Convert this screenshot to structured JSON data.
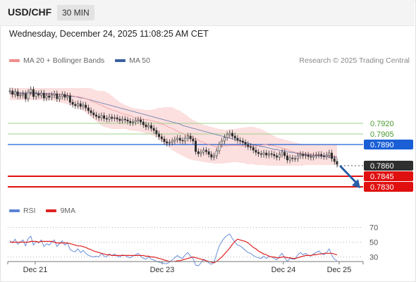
{
  "header": {
    "symbol": "USD/CHF",
    "timeframe": "30 MIN",
    "datetime": "Wednesday, December 24, 2025 11:08:25 AM CET"
  },
  "legend": {
    "items": [
      {
        "label": "MA 20 + Bollinger Bands",
        "color": "#f08c8c",
        "icon": "ma20-bollinger-swatch"
      },
      {
        "label": "MA 50",
        "color": "#3a5fa0",
        "icon": "ma50-swatch"
      }
    ],
    "copyright": "Research © 2025 Trading Central"
  },
  "rsi_legend": {
    "items": [
      {
        "label": "RSI",
        "color": "#5b84d6",
        "icon": "rsi-swatch"
      },
      {
        "label": "9MA",
        "color": "#e02020",
        "icon": "rsi-9ma-swatch"
      }
    ]
  },
  "chart_data": [
    {
      "type": "candlestick",
      "instrument": "USD/CHF",
      "interval": "30 MIN",
      "x_ticks": [
        "Dec 21",
        "Dec 23",
        "Dec 24",
        "Dec 25"
      ],
      "price_levels": [
        {
          "label": "0.7920",
          "value": 0.792,
          "style": "green-line"
        },
        {
          "label": "0.7905",
          "value": 0.7905,
          "style": "green-line"
        },
        {
          "label": "0.7890",
          "value": 0.789,
          "style": "blue-line-box"
        },
        {
          "label": "0.7860",
          "value": 0.786,
          "style": "current-price-box"
        },
        {
          "label": "0.7845",
          "value": 0.7845,
          "style": "red-line-box"
        },
        {
          "label": "0.7830",
          "value": 0.783,
          "style": "red-line-box"
        }
      ],
      "price_range": [
        0.7815,
        0.7995
      ],
      "close": [
        0.7966,
        0.7961,
        0.7965,
        0.7959,
        0.796,
        0.7962,
        0.7955,
        0.7964,
        0.7968,
        0.7958,
        0.7962,
        0.796,
        0.7963,
        0.7956,
        0.7959,
        0.7957,
        0.796,
        0.7962,
        0.7955,
        0.7958,
        0.7961,
        0.7957,
        0.7959,
        0.795,
        0.7947,
        0.7945,
        0.7948,
        0.7944,
        0.7946,
        0.7942,
        0.7938,
        0.7935,
        0.7932,
        0.793,
        0.7928,
        0.7931,
        0.7927,
        0.7926,
        0.7929,
        0.7927,
        0.7928,
        0.7926,
        0.7924,
        0.7926,
        0.7925,
        0.7923,
        0.7921,
        0.7922,
        0.7924,
        0.7925,
        0.7922,
        0.7918,
        0.7915,
        0.7917,
        0.7913,
        0.791,
        0.7905,
        0.7901,
        0.7898,
        0.7894,
        0.7892,
        0.7893,
        0.7895,
        0.7897,
        0.7899,
        0.7896,
        0.7895,
        0.7899,
        0.7902,
        0.7898,
        0.7895,
        0.788,
        0.7877,
        0.7879,
        0.7882,
        0.788,
        0.7876,
        0.7872,
        0.7874,
        0.7881,
        0.789,
        0.7895,
        0.79,
        0.7904,
        0.7906,
        0.7902,
        0.7899,
        0.7896,
        0.7895,
        0.7893,
        0.789,
        0.7887,
        0.7886,
        0.7882,
        0.7879,
        0.7877,
        0.7876,
        0.7878,
        0.7875,
        0.7877,
        0.7876,
        0.7874,
        0.7872,
        0.7876,
        0.7879,
        0.7874,
        0.7868,
        0.7871,
        0.787,
        0.787,
        0.7874,
        0.7876,
        0.7874,
        0.7875,
        0.7873,
        0.7872,
        0.7874,
        0.7875,
        0.7876,
        0.7874,
        0.7873,
        0.7875,
        0.7878,
        0.787,
        0.7866,
        0.7862
      ],
      "ma20_series": [
        0.7962,
        0.7962,
        0.7962,
        0.7962,
        0.7962,
        0.7962,
        0.7962,
        0.7962,
        0.7962,
        0.7962,
        0.7962,
        0.7962,
        0.7962,
        0.7961,
        0.7961,
        0.7961,
        0.7961,
        0.7961,
        0.7961,
        0.7961,
        0.7961,
        0.7961,
        0.796,
        0.796,
        0.7959,
        0.7958,
        0.7958,
        0.7957,
        0.7956,
        0.7955,
        0.7954,
        0.7952,
        0.795,
        0.7949,
        0.7947,
        0.7946,
        0.7944,
        0.7942,
        0.7941,
        0.7939,
        0.7938,
        0.7937,
        0.7935,
        0.7934,
        0.7933,
        0.7932,
        0.7931,
        0.7929,
        0.7928,
        0.7927,
        0.7926,
        0.7926,
        0.7925,
        0.7925,
        0.7924,
        0.7923,
        0.7922,
        0.7921,
        0.7919,
        0.7918,
        0.7916,
        0.7914,
        0.7913,
        0.7911,
        0.7909,
        0.7907,
        0.7906,
        0.7904,
        0.7903,
        0.7902,
        0.79,
        0.7898,
        0.7896,
        0.7894,
        0.7893,
        0.7891,
        0.789,
        0.7889,
        0.7888,
        0.7887,
        0.7887,
        0.7888,
        0.7888,
        0.7888,
        0.7889,
        0.7889,
        0.7889,
        0.7889,
        0.7888,
        0.7888,
        0.7888,
        0.7887,
        0.7888,
        0.7888,
        0.7888,
        0.7888,
        0.7889,
        0.789,
        0.789,
        0.7889,
        0.7889,
        0.7888,
        0.7887,
        0.7886,
        0.7885,
        0.7884,
        0.7883,
        0.7881,
        0.788,
        0.7879,
        0.7878,
        0.7878,
        0.7877,
        0.7877,
        0.7876,
        0.7876,
        0.7876,
        0.7876,
        0.7875,
        0.7875,
        0.7874,
        0.7874,
        0.7874,
        0.7874,
        0.7873,
        0.7873
      ],
      "bb_upper": [
        0.797,
        0.797,
        0.797,
        0.797,
        0.797,
        0.797,
        0.797,
        0.797,
        0.797,
        0.797,
        0.797,
        0.797,
        0.797,
        0.797,
        0.797,
        0.797,
        0.797,
        0.797,
        0.797,
        0.797,
        0.797,
        0.797,
        0.797,
        0.797,
        0.797,
        0.797,
        0.797,
        0.797,
        0.797,
        0.797,
        0.797,
        0.797,
        0.7968,
        0.7967,
        0.7966,
        0.7966,
        0.7966,
        0.7964,
        0.7962,
        0.7959,
        0.7956,
        0.7953,
        0.795,
        0.7948,
        0.7946,
        0.7945,
        0.7943,
        0.7942,
        0.7941,
        0.7941,
        0.794,
        0.794,
        0.7939,
        0.7939,
        0.7939,
        0.794,
        0.7941,
        0.7942,
        0.7942,
        0.7943,
        0.7943,
        0.7943,
        0.7943,
        0.7941,
        0.7939,
        0.7938,
        0.7935,
        0.7933,
        0.793,
        0.7927,
        0.7925,
        0.7923,
        0.7921,
        0.792,
        0.7918,
        0.7917,
        0.7916,
        0.7915,
        0.7914,
        0.7913,
        0.7912,
        0.7912,
        0.7911,
        0.7911,
        0.7912,
        0.7912,
        0.7912,
        0.7913,
        0.7913,
        0.7914,
        0.7914,
        0.7915,
        0.7915,
        0.7915,
        0.7914,
        0.7913,
        0.7912,
        0.791,
        0.7908,
        0.7906,
        0.7904,
        0.7902,
        0.79,
        0.7899,
        0.7898,
        0.7897,
        0.7896,
        0.7895,
        0.7894,
        0.7893,
        0.7892,
        0.7891,
        0.7891,
        0.789,
        0.789,
        0.789,
        0.789,
        0.789,
        0.789,
        0.789,
        0.789,
        0.789,
        0.789,
        0.789,
        0.789,
        0.789
      ],
      "bb_lower": [
        0.7953,
        0.7953,
        0.7953,
        0.7953,
        0.7953,
        0.7953,
        0.7953,
        0.7953,
        0.7953,
        0.7953,
        0.7953,
        0.7953,
        0.7953,
        0.7953,
        0.7953,
        0.7953,
        0.7953,
        0.7952,
        0.7951,
        0.795,
        0.7949,
        0.7948,
        0.7947,
        0.7946,
        0.7945,
        0.7944,
        0.7942,
        0.794,
        0.7938,
        0.7935,
        0.7932,
        0.7929,
        0.7926,
        0.7923,
        0.792,
        0.7917,
        0.7915,
        0.7914,
        0.7913,
        0.7912,
        0.7912,
        0.7912,
        0.7912,
        0.7912,
        0.7912,
        0.7911,
        0.791,
        0.791,
        0.7909,
        0.7909,
        0.7908,
        0.7907,
        0.7906,
        0.7905,
        0.7904,
        0.7902,
        0.79,
        0.7897,
        0.7894,
        0.7891,
        0.7888,
        0.7885,
        0.7882,
        0.788,
        0.7878,
        0.7876,
        0.7874,
        0.7872,
        0.787,
        0.7869,
        0.7868,
        0.7867,
        0.7867,
        0.7866,
        0.7865,
        0.7865,
        0.7864,
        0.7864,
        0.7863,
        0.7863,
        0.7863,
        0.7863,
        0.7863,
        0.7864,
        0.7864,
        0.7865,
        0.7865,
        0.7865,
        0.7864,
        0.7864,
        0.7863,
        0.7862,
        0.7862,
        0.7862,
        0.7861,
        0.7861,
        0.7861,
        0.7861,
        0.786,
        0.786,
        0.786,
        0.786,
        0.786,
        0.786,
        0.786,
        0.786,
        0.786,
        0.786,
        0.786,
        0.786,
        0.786,
        0.786,
        0.786,
        0.7861,
        0.7861,
        0.7861,
        0.7861,
        0.7861,
        0.7861,
        0.7861,
        0.7861,
        0.7861,
        0.7861,
        0.7861,
        0.7861,
        0.7861
      ],
      "ma50_series": [
        0.7963,
        0.7963,
        0.7963,
        0.7963,
        0.7963,
        0.7963,
        0.7963,
        0.7963,
        0.7963,
        0.7963,
        0.7963,
        0.7963,
        0.7962,
        0.7962,
        0.7962,
        0.7962,
        0.7962,
        0.7961,
        0.7961,
        0.7961,
        0.796,
        0.796,
        0.7959,
        0.7959,
        0.7958,
        0.7958,
        0.7957,
        0.7956,
        0.7956,
        0.7955,
        0.7954,
        0.7953,
        0.7952,
        0.7951,
        0.795,
        0.7949,
        0.7948,
        0.7947,
        0.7946,
        0.7945,
        0.7944,
        0.7943,
        0.7942,
        0.7941,
        0.794,
        0.7939,
        0.7938,
        0.7937,
        0.7936,
        0.7935,
        0.7934,
        0.7933,
        0.7932,
        0.7931,
        0.793,
        0.7929,
        0.7928,
        0.7927,
        0.7926,
        0.7925,
        0.7924,
        0.7923,
        0.7922,
        0.7921,
        0.792,
        0.7919,
        0.7917,
        0.7916,
        0.7915,
        0.7914,
        0.7913,
        0.7912,
        0.7911,
        0.791,
        0.7909,
        0.7908,
        0.7907,
        0.7906,
        0.7905,
        0.7904,
        0.7903,
        0.7902,
        0.7901,
        0.79,
        0.7899,
        0.7898,
        0.7897,
        0.7896,
        0.7895,
        0.7894,
        0.7893,
        0.7892,
        0.7891,
        0.789,
        0.7889,
        0.7888,
        0.7887,
        0.7887,
        0.7886,
        0.7885,
        0.7884,
        0.7883,
        0.7883,
        0.7882,
        0.7881,
        0.7881,
        0.788,
        0.7879,
        0.7879,
        0.7878,
        0.7877,
        0.7877,
        0.7876,
        0.7876,
        0.7875,
        0.7875,
        0.7874,
        0.7874,
        0.7874,
        0.7873,
        0.7873,
        0.7873,
        0.7872,
        0.7872,
        0.7872,
        0.7872
      ],
      "forecast_arrow": {
        "from": 0.786,
        "to": 0.783,
        "color": "#2a5ea8"
      }
    },
    {
      "type": "line",
      "indicator": "RSI",
      "y_ticks": [
        "70",
        "50",
        "30"
      ],
      "ylim": [
        20,
        80
      ],
      "series": [
        {
          "name": "RSI",
          "color": "#5b84d6",
          "values": [
            52,
            49,
            54,
            47,
            50,
            53,
            45,
            55,
            58,
            46,
            51,
            49,
            53,
            44,
            48,
            46,
            50,
            53,
            44,
            48,
            52,
            46,
            49,
            40,
            38,
            37,
            41,
            36,
            39,
            35,
            32,
            31,
            30,
            31,
            30,
            35,
            31,
            30,
            34,
            32,
            34,
            31,
            30,
            33,
            32,
            30,
            29,
            31,
            33,
            35,
            31,
            28,
            27,
            30,
            27,
            26,
            24,
            23,
            22,
            21,
            21,
            23,
            26,
            29,
            32,
            29,
            28,
            33,
            36,
            31,
            28,
            19,
            18,
            22,
            27,
            25,
            22,
            20,
            23,
            34,
            45,
            51,
            56,
            59,
            61,
            55,
            50,
            46,
            45,
            42,
            39,
            36,
            35,
            32,
            30,
            29,
            28,
            31,
            28,
            31,
            30,
            28,
            26,
            31,
            35,
            29,
            24,
            28,
            27,
            27,
            33,
            36,
            33,
            35,
            32,
            31,
            34,
            36,
            38,
            35,
            33,
            36,
            41,
            32,
            27,
            25
          ]
        },
        {
          "name": "9MA",
          "color": "#e02020",
          "values": [
            50,
            50,
            50,
            50,
            50,
            50,
            50,
            50,
            51,
            51,
            51,
            50,
            51,
            51,
            51,
            51,
            51,
            50,
            49,
            49,
            49,
            49,
            49,
            48,
            47,
            46,
            45,
            45,
            44,
            43,
            41,
            40,
            38,
            37,
            36,
            35,
            34,
            33,
            33,
            32,
            32,
            32,
            32,
            32,
            32,
            32,
            32,
            32,
            32,
            32,
            32,
            32,
            31,
            31,
            30,
            30,
            29,
            28,
            27,
            26,
            25,
            24,
            24,
            24,
            25,
            25,
            26,
            27,
            28,
            29,
            30,
            29,
            28,
            27,
            26,
            25,
            24,
            23,
            22,
            24,
            27,
            30,
            34,
            38,
            42,
            47,
            51,
            54,
            53,
            52,
            51,
            49,
            46,
            43,
            41,
            38,
            36,
            34,
            33,
            31,
            30,
            30,
            29,
            29,
            30,
            30,
            29,
            29,
            28,
            28,
            29,
            30,
            31,
            32,
            32,
            32,
            33,
            33,
            34,
            34,
            35,
            35,
            35,
            35,
            34,
            33
          ]
        }
      ]
    }
  ]
}
